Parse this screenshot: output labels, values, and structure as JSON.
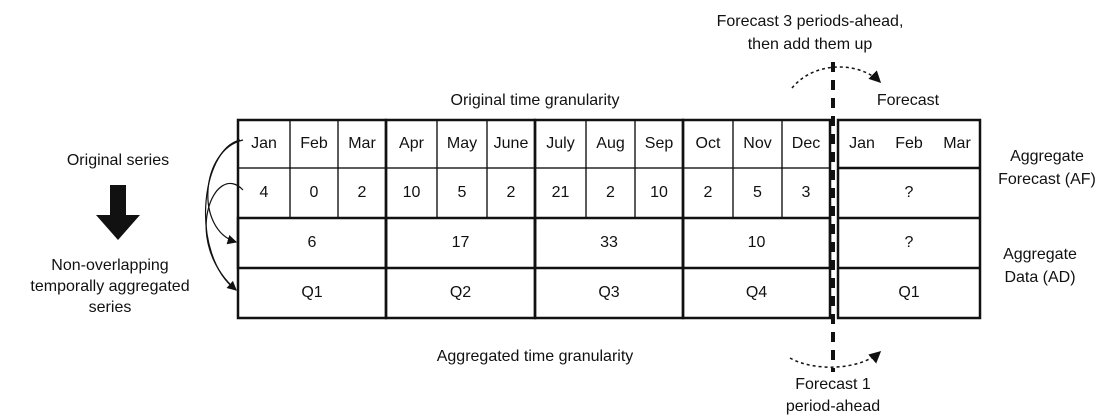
{
  "header": {
    "top_note": [
      "Forecast 3 periods-ahead,",
      "then add them up"
    ],
    "original_granularity": "Original time granularity",
    "forecast": "Forecast"
  },
  "left": {
    "original": "Original series",
    "aggregated": [
      "Non-overlapping",
      "temporally aggregated",
      "series"
    ]
  },
  "table": {
    "months": [
      "Jan",
      "Feb",
      "Mar",
      "Apr",
      "May",
      "June",
      "July",
      "Aug",
      "Sep",
      "Oct",
      "Nov",
      "Dec"
    ],
    "values": [
      4,
      0,
      2,
      10,
      5,
      2,
      21,
      2,
      10,
      2,
      5,
      3
    ],
    "aggregates": [
      6,
      17,
      33,
      10
    ],
    "quarters": [
      "Q1",
      "Q2",
      "Q3",
      "Q4"
    ]
  },
  "forecast_box": {
    "months": [
      "Jan",
      "Feb",
      "Mar"
    ],
    "af": "?",
    "ad": "?",
    "quarter": "Q1"
  },
  "right": {
    "af": [
      "Aggregate",
      "Forecast (AF)"
    ],
    "ad": [
      "Aggregate",
      "Data (AD)"
    ]
  },
  "footer": {
    "aggregated_granularity": "Aggregated time granularity",
    "bottom_note": [
      "Forecast 1",
      "period-ahead"
    ]
  }
}
